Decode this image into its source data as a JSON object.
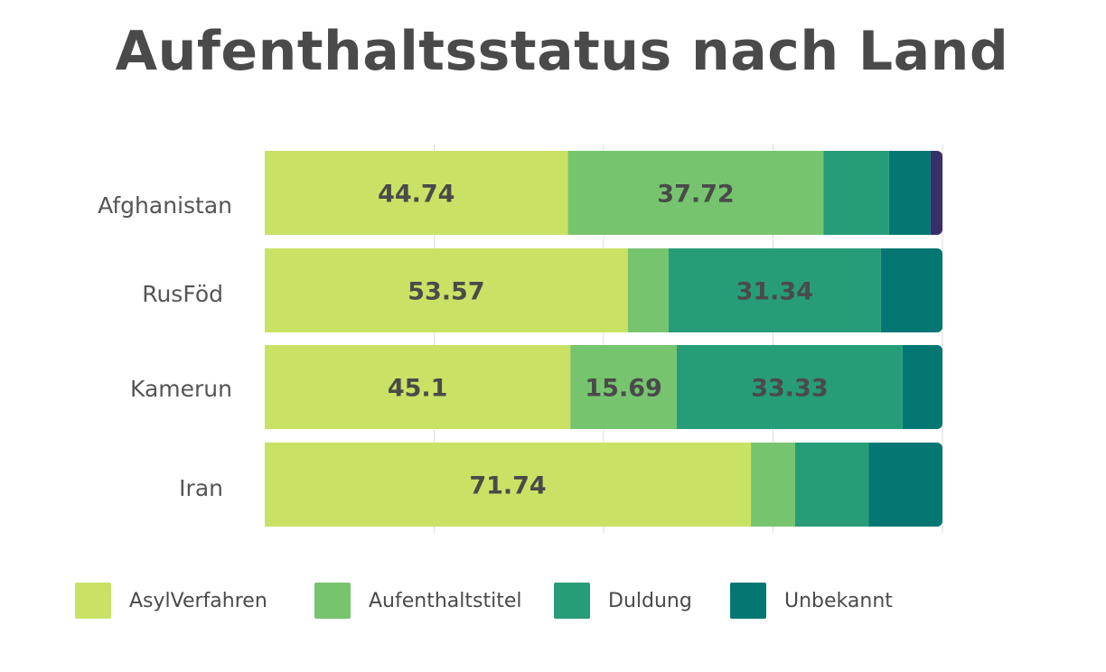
{
  "chart_data": {
    "type": "bar",
    "orientation": "horizontal",
    "stacked": true,
    "title": "Aufenthaltsstatus nach Land",
    "xlabel": "",
    "ylabel": "",
    "xlim": [
      0,
      100
    ],
    "grid": true,
    "legend_position": "bottom",
    "categories": [
      "Afghanistan",
      "RusFöd",
      "Kamerun",
      "Iran"
    ],
    "series": [
      {
        "name": "AsylVerfahren",
        "color": "#c9e265",
        "values": [
          44.74,
          53.57,
          45.1,
          71.74
        ],
        "labels": [
          "44.74",
          "53.57",
          "45.1",
          "71.74"
        ]
      },
      {
        "name": "Aufenthaltstitel",
        "color": "#77c46f",
        "values": [
          37.72,
          6.0,
          15.69,
          6.52
        ],
        "labels": [
          "37.72",
          "",
          "15.69",
          ""
        ]
      },
      {
        "name": "Duldung",
        "color": "#279c78",
        "values": [
          9.65,
          31.34,
          33.33,
          10.87
        ],
        "labels": [
          "",
          "31.34",
          "33.33",
          ""
        ]
      },
      {
        "name": "Unbekannt",
        "color": "#057773",
        "values": [
          6.14,
          9.09,
          5.88,
          10.87
        ],
        "labels": [
          "",
          "",
          "",
          ""
        ]
      },
      {
        "name": "",
        "color": "#37306b",
        "values": [
          1.75,
          0,
          0,
          0
        ],
        "labels": [
          "",
          "",
          "",
          ""
        ]
      }
    ]
  },
  "legend": [
    {
      "label": "AsylVerfahren",
      "color": "#c9e265"
    },
    {
      "label": "Aufenthaltstitel",
      "color": "#77c46f"
    },
    {
      "label": "Duldung",
      "color": "#279c78"
    },
    {
      "label": "Unbekannt",
      "color": "#057773"
    }
  ]
}
